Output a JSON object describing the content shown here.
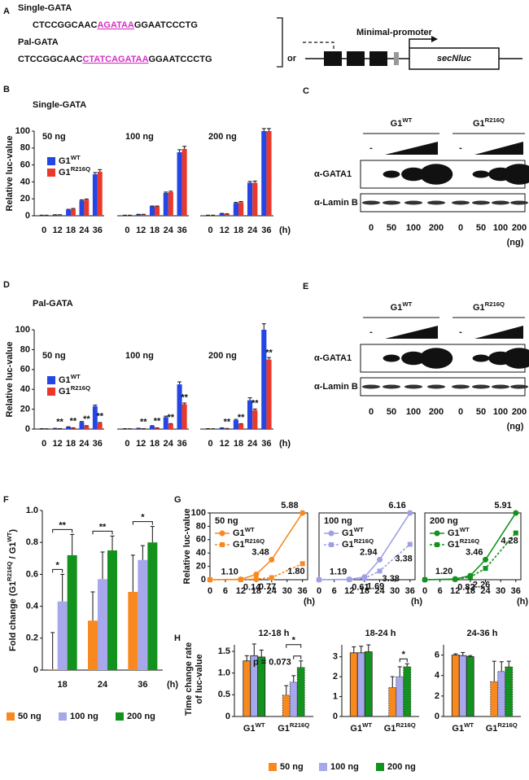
{
  "panel_labels": [
    "A",
    "B",
    "C",
    "D",
    "E",
    "F",
    "G",
    "H"
  ],
  "diagram": {
    "constructs": [
      {
        "name": "Single-GATA",
        "sequence": [
          "CTCCGGCAAC",
          "AGATAA",
          "GGAATCCCTG"
        ]
      },
      {
        "name": "Pal-GATA",
        "sequence": [
          "CTCCGGCAAC",
          "CTATCAGATAA",
          "GGAATCCCTG"
        ]
      }
    ],
    "or": "or",
    "promoter": "Minimal-promoter",
    "reporter": "secNluc"
  },
  "blots": [
    {
      "groups": [
        {
          "name": "G1",
          "sup": "WT"
        },
        {
          "name": "G1",
          "sup": "R216Q"
        }
      ],
      "control": "-",
      "rows": [
        "α-GATA1",
        "α-Lamin B"
      ],
      "lanes": [
        "0",
        "50",
        "100",
        "200",
        "0",
        "50",
        "100",
        "200"
      ],
      "unit": "(ng)"
    },
    {
      "groups": [
        {
          "name": "G1",
          "sup": "WT"
        },
        {
          "name": "G1",
          "sup": "R216Q"
        }
      ],
      "control": "-",
      "rows": [
        "α-GATA1",
        "α-Lamin B"
      ],
      "lanes": [
        "0",
        "50",
        "100",
        "200",
        "0",
        "50",
        "100",
        "200"
      ],
      "unit": "(ng)"
    }
  ],
  "chart_data": [
    {
      "type": "grouped-bar",
      "title": "Single-GATA",
      "ylabel": "Relative luc-value",
      "ylim": [
        0,
        100
      ],
      "yticks": [
        0,
        20,
        40,
        60,
        80,
        100
      ],
      "categories": [
        "0",
        "12",
        "18",
        "24",
        "36"
      ],
      "x_unit": "(h)",
      "groups": [
        "50 ng",
        "100 ng",
        "200 ng"
      ],
      "legend": "upper-left",
      "series": [
        {
          "name": "G1",
          "sup": "WT",
          "color": "#2446e6",
          "values": [
            [
              0.5,
              1,
              7,
              18,
              49
            ],
            [
              0.5,
              1.5,
              11,
              27,
              75
            ],
            [
              0.5,
              2.5,
              15,
              39,
              100
            ]
          ],
          "errors": [
            [
              0.2,
              0.2,
              0.6,
              0.8,
              2
            ],
            [
              0.2,
              0.2,
              0.5,
              1,
              3
            ],
            [
              0.2,
              0.3,
              0.8,
              1.5,
              3
            ]
          ]
        },
        {
          "name": "G1",
          "sup": "R216Q",
          "color": "#e8392b",
          "values": [
            [
              0.5,
              1,
              8,
              19,
              52
            ],
            [
              0.5,
              1.5,
              11,
              28,
              79
            ],
            [
              0.5,
              2,
              16,
              39,
              100
            ]
          ],
          "errors": [
            [
              0.2,
              0.2,
              0.6,
              0.8,
              2.5
            ],
            [
              0.2,
              0.2,
              0.5,
              1,
              3
            ],
            [
              0.2,
              0.3,
              0.8,
              2,
              3
            ]
          ]
        }
      ]
    },
    {
      "type": "grouped-bar",
      "title": "Pal-GATA",
      "ylabel": "Relative luc-value",
      "ylim": [
        0,
        100
      ],
      "yticks": [
        0,
        20,
        40,
        60,
        80,
        100
      ],
      "categories": [
        "0",
        "12",
        "18",
        "24",
        "36"
      ],
      "x_unit": "(h)",
      "groups": [
        "50 ng",
        "100 ng",
        "200 ng"
      ],
      "legend": "upper-left",
      "series": [
        {
          "name": "G1",
          "sup": "WT",
          "color": "#2446e6",
          "values": [
            [
              0.3,
              0.5,
              2,
              7,
              23
            ],
            [
              0.3,
              0.6,
              3,
              12,
              45
            ],
            [
              0.3,
              1,
              9,
              29,
              100
            ]
          ],
          "errors": [
            [
              0.1,
              0.2,
              0.3,
              0.6,
              1.2
            ],
            [
              0.1,
              0.2,
              0.4,
              1,
              2.5
            ],
            [
              0.1,
              0.2,
              0.8,
              2.5,
              6
            ]
          ]
        },
        {
          "name": "G1",
          "sup": "R216Q",
          "color": "#e8392b",
          "values": [
            [
              0.2,
              0.3,
              1,
              3,
              6
            ],
            [
              0.2,
              0.3,
              1,
              5,
              25
            ],
            [
              0.2,
              0.5,
              5,
              19,
              70
            ]
          ],
          "errors": [
            [
              0.1,
              0.1,
              0.2,
              0.4,
              0.6
            ],
            [
              0.1,
              0.1,
              0.2,
              0.5,
              1.2
            ],
            [
              0.1,
              0.1,
              0.4,
              1.2,
              2
            ]
          ],
          "annotations": [
            [
              null,
              "**",
              "**",
              "**",
              "**"
            ],
            [
              null,
              "**",
              "**",
              "**",
              "**"
            ],
            [
              null,
              "**",
              "**",
              "**",
              "**"
            ]
          ]
        }
      ]
    },
    {
      "type": "bar",
      "ylabel": [
        "Fold change (G1",
        "R216Q",
        " / G1",
        "WT",
        ")"
      ],
      "ylim": [
        0,
        1
      ],
      "yticks": [
        0,
        0.2,
        0.4,
        0.6,
        0.8,
        {
          "value": 1,
          "label": "1.0"
        }
      ],
      "categories": [
        "18",
        "24",
        "36"
      ],
      "x_unit": "(h)",
      "series": [
        {
          "name": "50 ng",
          "color": "#f7891f",
          "values": [
            0.005,
            0.31,
            0.49
          ],
          "errors": [
            0.23,
            0.18,
            0.23
          ]
        },
        {
          "name": "100 ng",
          "color": "#a7a7ec",
          "values": [
            0.43,
            0.57,
            0.69
          ],
          "errors": [
            0.17,
            0.17,
            0.09
          ]
        },
        {
          "name": "200 ng",
          "color": "#13921e",
          "values": [
            0.72,
            0.75,
            0.8
          ],
          "errors": [
            0.13,
            0.09,
            0.1
          ]
        }
      ],
      "significance": [
        "*",
        "**",
        "**",
        "*"
      ]
    },
    {
      "type": "line",
      "title": "50 ng",
      "ylabel": "Relative luc-value",
      "x": [
        0,
        12,
        18,
        24,
        36
      ],
      "xlim": [
        0,
        38
      ],
      "xticks": [
        0,
        6,
        12,
        18,
        24,
        30,
        36
      ],
      "x_unit": "(h)",
      "ylim": [
        0,
        100
      ],
      "yticks": [
        0,
        20,
        40,
        60,
        80,
        100
      ],
      "series": [
        {
          "name": "G1",
          "sup": "WT",
          "color": "#f7891f",
          "line": "solid",
          "marker": "circle",
          "values": [
            0,
            0.5,
            8,
            30,
            100
          ],
          "notes": [
            null,
            "1.10",
            null,
            "3.48",
            "5.88"
          ]
        },
        {
          "name": "G1",
          "sup": "R216Q",
          "color": "#f7891f",
          "line": "dashed",
          "marker": "square",
          "values": [
            0,
            0.2,
            1,
            3,
            24
          ],
          "notes": [
            null,
            "0.14",
            "0.77",
            null,
            "1.80"
          ]
        }
      ]
    },
    {
      "type": "line",
      "title": "100 ng",
      "x": [
        0,
        12,
        18,
        24,
        36
      ],
      "xlim": [
        0,
        38
      ],
      "xticks": [
        0,
        6,
        12,
        18,
        24,
        30,
        36
      ],
      "x_unit": "(h)",
      "ylim": [
        0,
        100
      ],
      "series": [
        {
          "name": "G1",
          "sup": "WT",
          "color": "#9f9fe6",
          "line": "solid",
          "marker": "circle",
          "values": [
            0,
            0.5,
            4,
            30,
            100
          ],
          "notes": [
            null,
            "1.19",
            null,
            "2.94",
            "6.16"
          ]
        },
        {
          "name": "G1",
          "sup": "R216Q",
          "color": "#9f9fe6",
          "line": "dashed",
          "marker": "square",
          "values": [
            0,
            0.3,
            2,
            13,
            53
          ],
          "notes": [
            null,
            "0.61",
            "1.69",
            "3.38",
            "3.38"
          ]
        }
      ]
    },
    {
      "type": "line",
      "title": "200 ng",
      "x": [
        0,
        12,
        18,
        24,
        36
      ],
      "xlim": [
        0,
        38
      ],
      "xticks": [
        0,
        6,
        12,
        18,
        24,
        30,
        36
      ],
      "x_unit": "(h)",
      "ylim": [
        0,
        100
      ],
      "series": [
        {
          "name": "G1",
          "sup": "WT",
          "color": "#13921e",
          "line": "solid",
          "marker": "circle",
          "values": [
            0,
            1,
            6,
            30,
            100
          ],
          "notes": [
            null,
            "1.20",
            null,
            "3.46",
            "5.91"
          ]
        },
        {
          "name": "G1",
          "sup": "R216Q",
          "color": "#13921e",
          "line": "dashed",
          "marker": "square",
          "values": [
            0,
            0.5,
            4,
            17,
            70
          ],
          "notes": [
            null,
            "0.82",
            "2.26",
            null,
            "4.28"
          ]
        }
      ]
    },
    {
      "type": "bar",
      "title": "12-18 h",
      "ylabel": [
        "Time change rate",
        "of luc-value"
      ],
      "ylim": [
        0,
        1.65
      ],
      "yticks": [
        0,
        0.5,
        {
          "value": 1,
          "label": "1.0"
        },
        1.5
      ],
      "categories": [
        [
          "G1",
          "WT"
        ],
        [
          "G1",
          "R216Q"
        ]
      ],
      "bar_outline": [
        "solid",
        "dotted"
      ],
      "series": [
        {
          "name": "50 ng",
          "color": "#f7891f",
          "values": [
            1.28,
            0.49
          ],
          "errors": [
            0.12,
            0.22
          ]
        },
        {
          "name": "100 ng",
          "color": "#a7a7ec",
          "values": [
            1.4,
            0.79
          ],
          "errors": [
            0.27,
            0.15
          ]
        },
        {
          "name": "200 ng",
          "color": "#13921e",
          "values": [
            1.37,
            1.13
          ],
          "errors": [
            0.16,
            0.15
          ]
        }
      ],
      "significance": [
        "*",
        "p = 0.073"
      ]
    },
    {
      "type": "bar",
      "title": "18-24 h",
      "ylim": [
        0,
        3.6
      ],
      "yticks": [
        0,
        1,
        2,
        3
      ],
      "categories": [
        [
          "G1",
          "WT"
        ],
        [
          "G1",
          "R216Q"
        ]
      ],
      "bar_outline": [
        "solid",
        "dotted"
      ],
      "series": [
        {
          "color": "#f7891f",
          "values": [
            3.2,
            1.45
          ],
          "errors": [
            0.3,
            0.55
          ]
        },
        {
          "color": "#a7a7ec",
          "values": [
            3.2,
            2.0
          ],
          "errors": [
            0.33,
            0.5
          ]
        },
        {
          "color": "#13921e",
          "values": [
            3.25,
            2.5
          ],
          "errors": [
            0.35,
            0.15
          ]
        }
      ],
      "significance": [
        "*"
      ]
    },
    {
      "type": "bar",
      "title": "24-36 h",
      "ylim": [
        0,
        7
      ],
      "yticks": [
        0,
        2,
        4,
        6
      ],
      "categories": [
        [
          "G1",
          "WT"
        ],
        [
          "G1",
          "R216Q"
        ]
      ],
      "bar_outline": [
        "solid",
        "dotted"
      ],
      "series": [
        {
          "color": "#f7891f",
          "values": [
            6.0,
            3.4
          ],
          "errors": [
            0.12,
            2.0
          ]
        },
        {
          "color": "#a7a7ec",
          "values": [
            5.95,
            4.4
          ],
          "errors": [
            0.3,
            0.95
          ]
        },
        {
          "color": "#13921e",
          "values": [
            5.85,
            4.85
          ],
          "errors": [
            0.1,
            0.55
          ]
        }
      ]
    }
  ]
}
